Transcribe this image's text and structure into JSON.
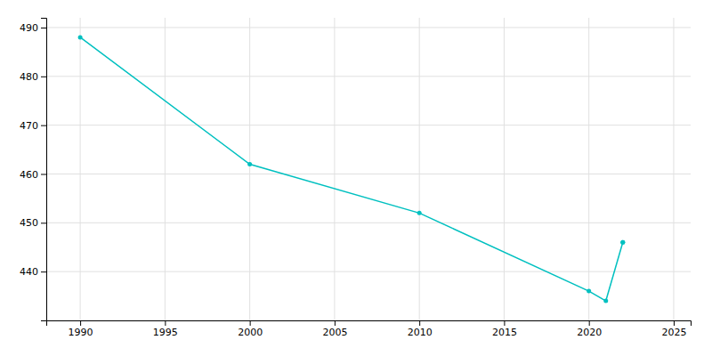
{
  "chart_data": {
    "type": "line",
    "x": [
      1990,
      2000,
      2010,
      2020,
      2021,
      2022,
      2022
    ],
    "values": [
      488,
      462,
      452,
      436,
      434,
      446,
      446
    ],
    "color": "#00c0c0",
    "marker": "circle",
    "xlim": [
      1988,
      2026
    ],
    "ylim": [
      430,
      492
    ],
    "xticks": [
      1990,
      1995,
      2000,
      2005,
      2010,
      2015,
      2020,
      2025
    ],
    "yticks": [
      440,
      450,
      460,
      470,
      480,
      490
    ],
    "grid": true
  }
}
